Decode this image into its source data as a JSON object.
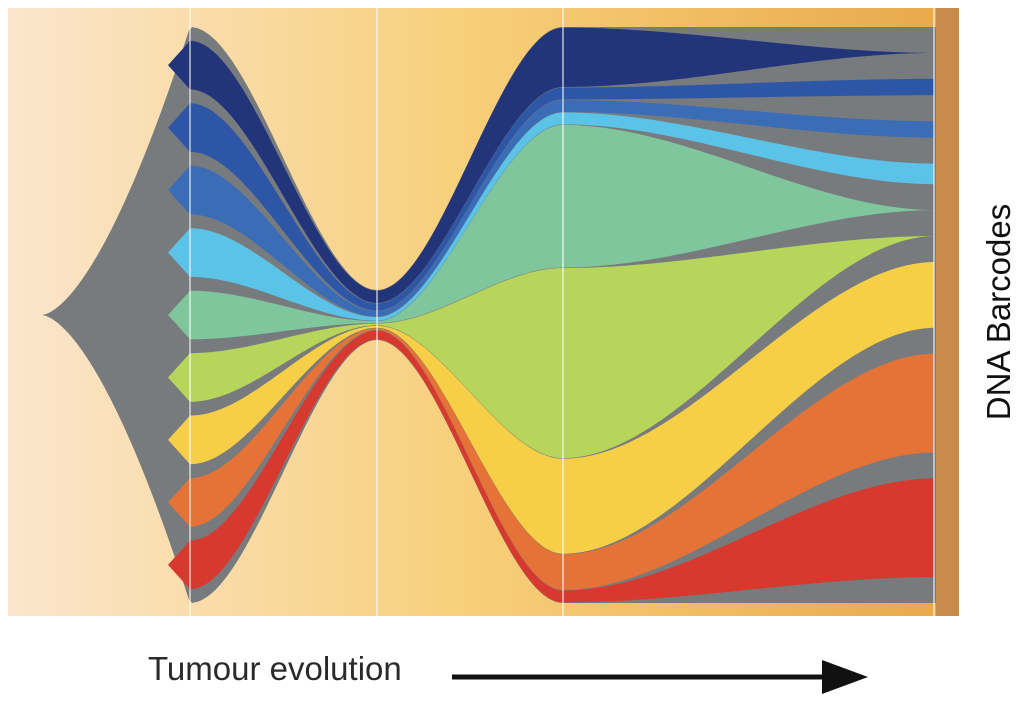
{
  "labels": {
    "side_axis": "DNA Barcodes",
    "bottom_axis": "Tumour evolution"
  },
  "colors": {
    "population": "#787b7e",
    "background_start": "#fbe6cd",
    "background_mid": "#f7cf79",
    "background_end": "#e9a94c",
    "edge_band": "#c98b49",
    "timepoint_line": "#ffffff",
    "arrow": "#111111"
  },
  "timepoints": 5,
  "clones": [
    {
      "color": "#22347a",
      "share": [
        0.1,
        0.35,
        0.25,
        0.0
      ]
    },
    {
      "color": "#2e56a7",
      "share": [
        0.1,
        0.2,
        0.05,
        0.2
      ]
    },
    {
      "color": "#3b6db7",
      "share": [
        0.1,
        0.15,
        0.05,
        0.2
      ]
    },
    {
      "color": "#5cc3e8",
      "share": [
        0.1,
        0.1,
        0.05,
        0.25
      ]
    },
    {
      "color": "#7fc69c",
      "share": [
        0.1,
        0.05,
        0.6,
        0.0
      ]
    },
    {
      "color": "#b8d55b",
      "share": [
        0.1,
        0.05,
        0.8,
        0.0
      ]
    },
    {
      "color": "#f7cf47",
      "share": [
        0.1,
        0.05,
        0.4,
        0.8
      ]
    },
    {
      "color": "#e57237",
      "share": [
        0.1,
        0.05,
        0.15,
        1.2
      ]
    },
    {
      "color": "#d8392f",
      "share": [
        0.1,
        0.25,
        0.05,
        1.2
      ]
    }
  ]
}
